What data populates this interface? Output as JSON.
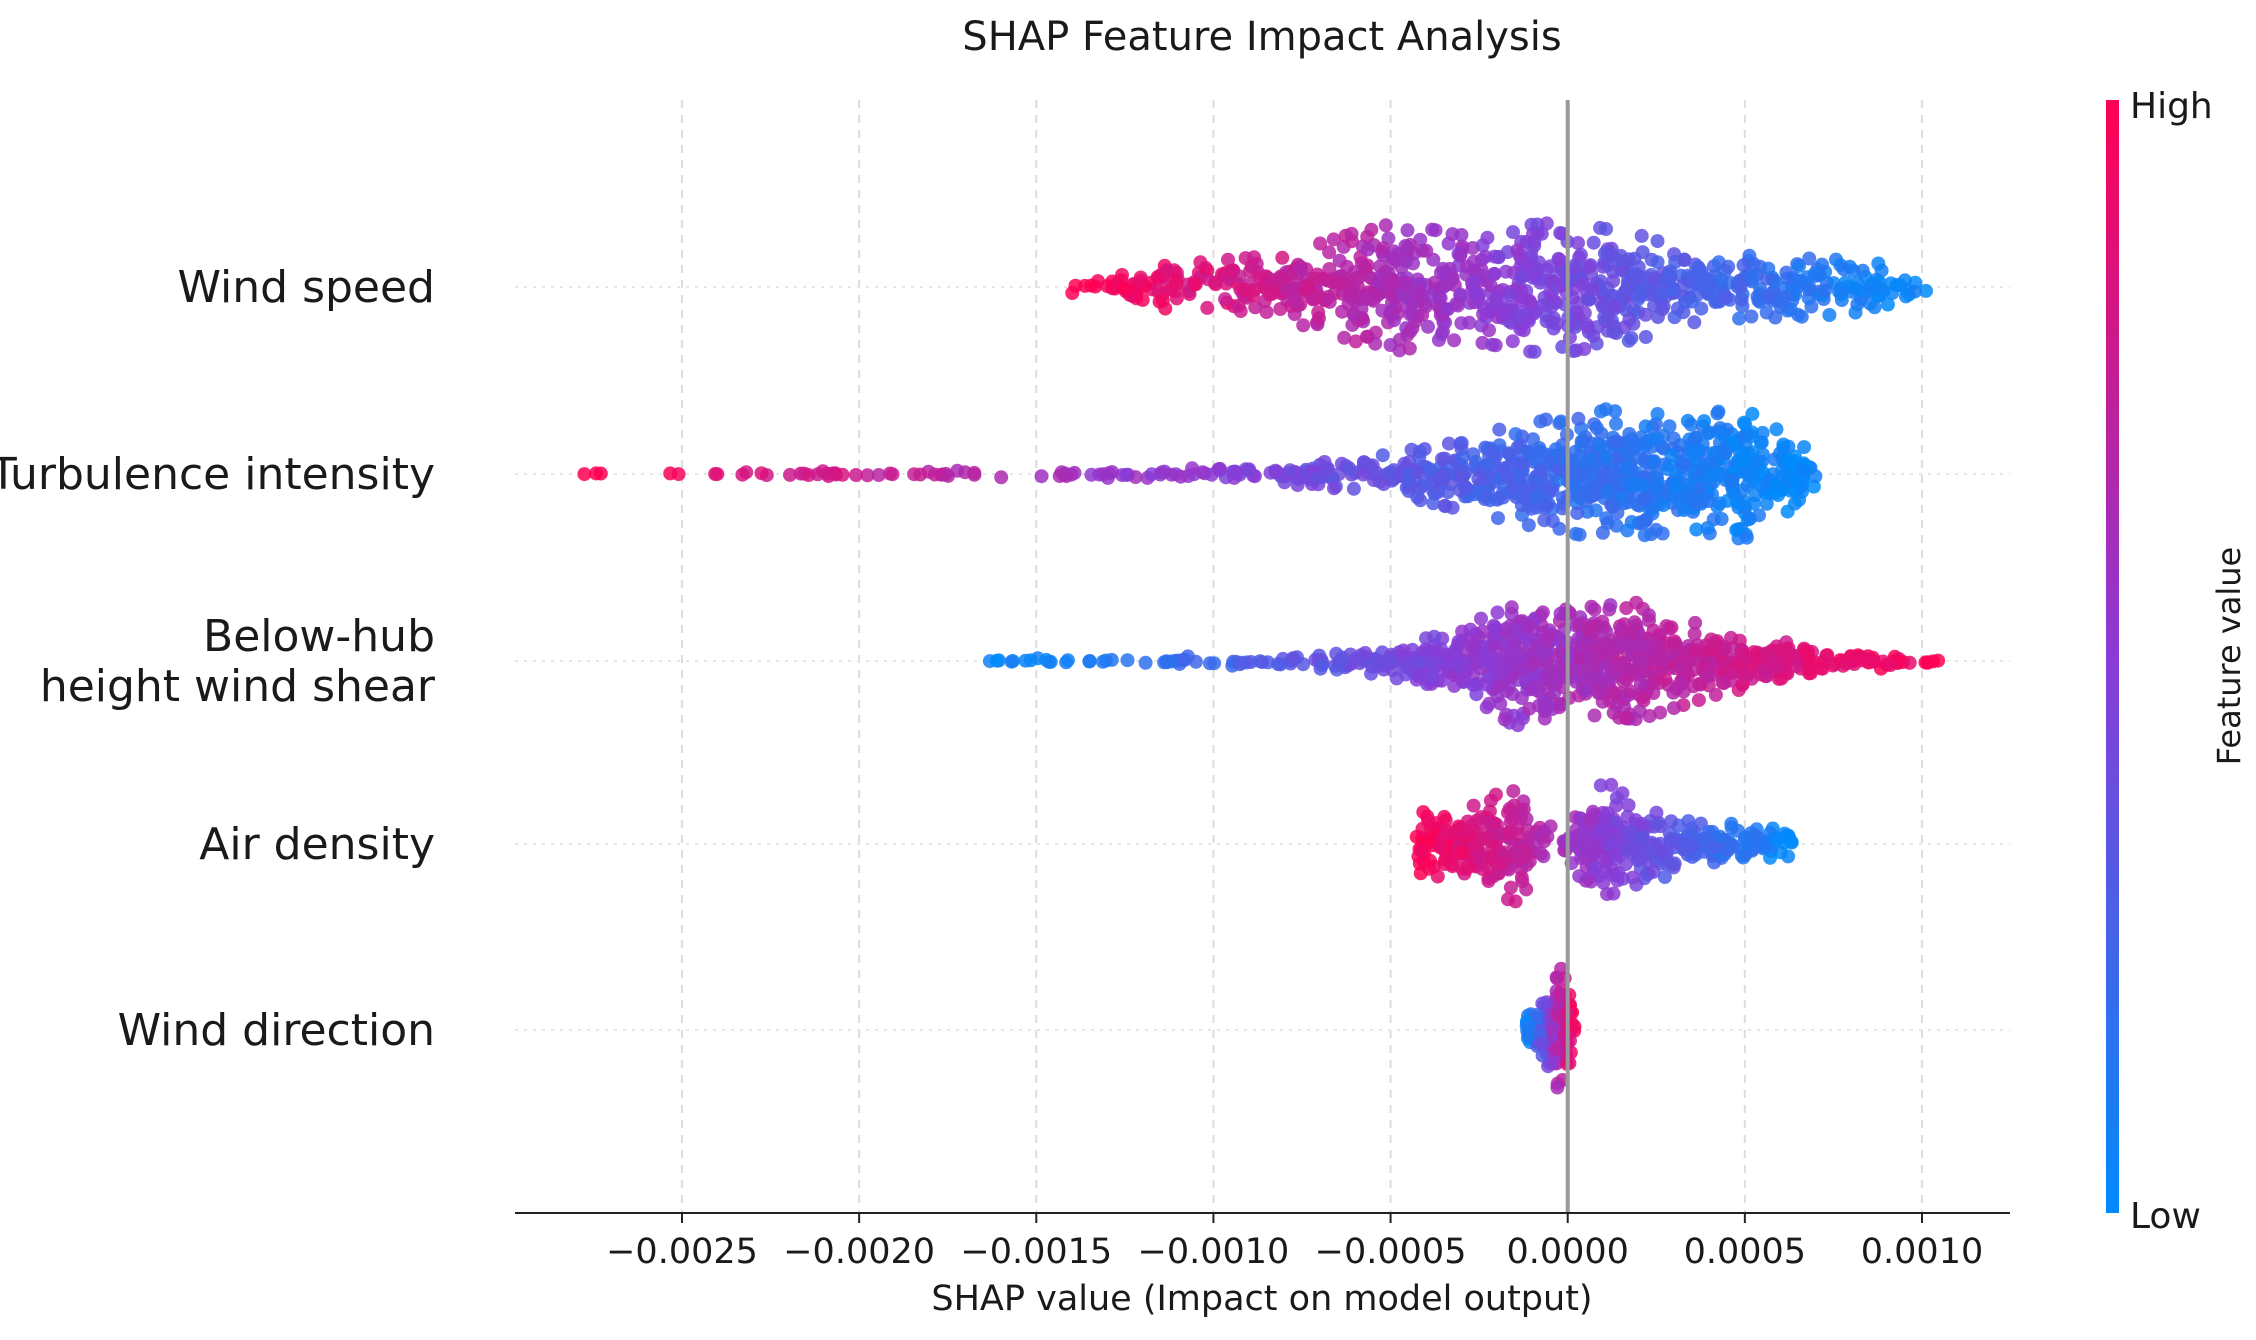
{
  "chart_data": {
    "type": "scatter",
    "subtype": "shap-beeswarm",
    "title": "SHAP Feature Impact Analysis",
    "xlabel": "SHAP value (Impact on model output)",
    "ylabel": "",
    "xlim": [
      -0.00295,
      0.00125
    ],
    "xticks": [
      -0.0025,
      -0.002,
      -0.0015,
      -0.001,
      -0.0005,
      0.0,
      0.0005,
      0.001
    ],
    "xtick_labels": [
      "−0.0025",
      "−0.0020",
      "−0.0015",
      "−0.0010",
      "−0.0005",
      "0.0000",
      "0.0005",
      "0.0010"
    ],
    "grid": "vertical dashed",
    "zero_line": 0.0,
    "colorbar": {
      "title": "Feature value",
      "high_label": "High",
      "low_label": "Low",
      "high_color": "#ff0052",
      "mid_color": "#8a3bd6",
      "low_color": "#008bfb"
    },
    "features": [
      {
        "name": "Wind speed",
        "label_lines": [
          "Wind speed"
        ],
        "x_range": [
          -0.0014,
          0.00102
        ],
        "density": [
          {
            "x": -0.0014,
            "w": 0.1
          },
          {
            "x": -0.0012,
            "w": 0.3
          },
          {
            "x": -0.001,
            "w": 0.4
          },
          {
            "x": -0.0008,
            "w": 0.5
          },
          {
            "x": -0.0005,
            "w": 1.0
          },
          {
            "x": -0.0003,
            "w": 0.8
          },
          {
            "x": -0.0001,
            "w": 1.0
          },
          {
            "x": 0.0,
            "w": 1.0
          },
          {
            "x": 0.0002,
            "w": 0.8
          },
          {
            "x": 0.0004,
            "w": 0.5
          },
          {
            "x": 0.0007,
            "w": 0.45
          },
          {
            "x": 0.0009,
            "w": 0.35
          },
          {
            "x": 0.00102,
            "w": 0.1
          }
        ],
        "color_trend": "high feature value → negative SHAP",
        "points": 900
      },
      {
        "name": "Turbulence intensity",
        "label_lines": [
          "Turbulence intensity"
        ],
        "x_range": [
          -0.0028,
          0.0007
        ],
        "density": [
          {
            "x": -0.0028,
            "w": 0.02
          },
          {
            "x": -0.0022,
            "w": 0.04
          },
          {
            "x": -0.0018,
            "w": 0.05
          },
          {
            "x": -0.0014,
            "w": 0.05
          },
          {
            "x": -0.0011,
            "w": 0.08
          },
          {
            "x": -0.0008,
            "w": 0.15
          },
          {
            "x": -0.0005,
            "w": 0.3
          },
          {
            "x": -0.0003,
            "w": 0.55
          },
          {
            "x": -0.0001,
            "w": 0.8
          },
          {
            "x": 0.0001,
            "w": 1.0
          },
          {
            "x": 0.0003,
            "w": 0.9
          },
          {
            "x": 0.0005,
            "w": 1.0
          },
          {
            "x": 0.0007,
            "w": 0.3
          }
        ],
        "color_trend": "high feature value → negative SHAP",
        "points": 900
      },
      {
        "name": "Below-hub height wind shear",
        "label_lines": [
          "Below-hub",
          "height wind shear"
        ],
        "x_range": [
          -0.00165,
          0.00107
        ],
        "density": [
          {
            "x": -0.00165,
            "w": 0.02
          },
          {
            "x": -0.0012,
            "w": 0.05
          },
          {
            "x": -0.0009,
            "w": 0.1
          },
          {
            "x": -0.0006,
            "w": 0.15
          },
          {
            "x": -0.0003,
            "w": 0.45
          },
          {
            "x": -0.00015,
            "w": 1.0
          },
          {
            "x": 0.0,
            "w": 0.8
          },
          {
            "x": 0.0002,
            "w": 0.9
          },
          {
            "x": 0.0004,
            "w": 0.55
          },
          {
            "x": 0.0006,
            "w": 0.3
          },
          {
            "x": 0.0008,
            "w": 0.15
          },
          {
            "x": 0.00107,
            "w": 0.05
          }
        ],
        "color_trend": "high feature value → positive SHAP",
        "points": 900
      },
      {
        "name": "Air density",
        "label_lines": [
          "Air density"
        ],
        "x_range": [
          -0.00043,
          0.00064
        ],
        "density": [
          {
            "x": -0.00043,
            "w": 0.5
          },
          {
            "x": -0.0003,
            "w": 0.5
          },
          {
            "x": -0.00015,
            "w": 0.9
          },
          {
            "x": -2e-05,
            "w": 0.1
          },
          {
            "x": 0.0001,
            "w": 1.0
          },
          {
            "x": 0.0002,
            "w": 0.6
          },
          {
            "x": 0.0004,
            "w": 0.35
          },
          {
            "x": 0.00064,
            "w": 0.2
          }
        ],
        "color_trend": "high feature value → negative SHAP",
        "points": 500
      },
      {
        "name": "Wind direction",
        "label_lines": [
          "Wind direction"
        ],
        "x_range": [
          -0.00012,
          2e-05
        ],
        "density": [
          {
            "x": -0.00012,
            "w": 0.2
          },
          {
            "x": -6e-05,
            "w": 0.5
          },
          {
            "x": -2e-05,
            "w": 1.0
          },
          {
            "x": 2e-05,
            "w": 0.3
          }
        ],
        "color_trend": "high feature value → positive SHAP",
        "points": 150
      }
    ]
  }
}
